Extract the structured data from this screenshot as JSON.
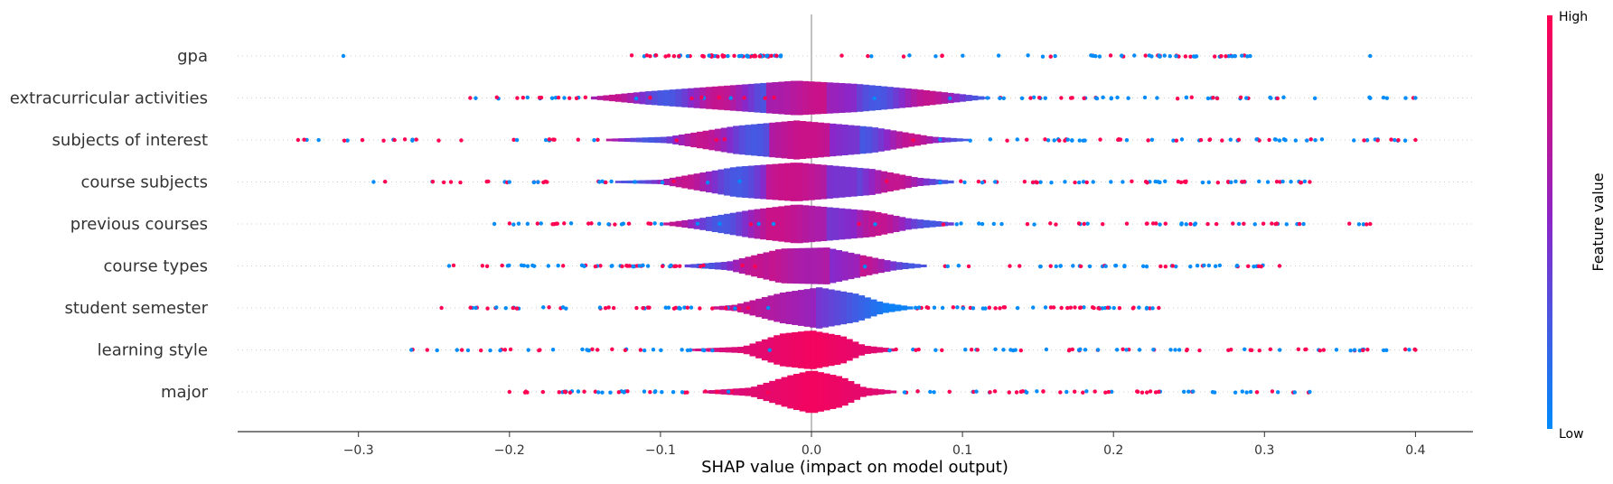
{
  "chart_data": {
    "type": "violin",
    "xlabel": "SHAP value (impact on model output)",
    "xlim": [
      -0.38,
      0.44
    ],
    "xticks": [
      -0.3,
      -0.2,
      -0.1,
      0.0,
      0.1,
      0.2,
      0.3,
      0.4
    ],
    "xtick_labels": [
      "−0.3",
      "−0.2",
      "−0.1",
      "0.0",
      "0.1",
      "0.2",
      "0.3",
      "0.4"
    ],
    "colorbar": {
      "title": "Feature value",
      "high_label": "High",
      "low_label": "Low",
      "high_color": "#ff0052",
      "low_color": "#008bfb"
    },
    "features": [
      {
        "name": "gpa",
        "min": -0.31,
        "max": 0.37,
        "violin_halfwidth": [
          [
            -0.12,
            0.003
          ],
          [
            0.0,
            0.004
          ],
          [
            0.2,
            0.003
          ],
          [
            0.3,
            0.001
          ]
        ],
        "color_profile": "mixed"
      },
      {
        "name": "extracurricular activities",
        "min": -0.226,
        "max": 0.4,
        "violin_halfwidth": [
          [
            -0.226,
            0.002
          ],
          [
            -0.15,
            0.006
          ],
          [
            -0.11,
            0.06
          ],
          [
            -0.07,
            0.1
          ],
          [
            -0.01,
            0.16
          ],
          [
            0.03,
            0.13
          ],
          [
            0.07,
            0.08
          ],
          [
            0.09,
            0.05
          ],
          [
            0.12,
            0.004
          ],
          [
            0.4,
            0.002
          ]
        ],
        "color_profile": "mixed"
      },
      {
        "name": "subjects of interest",
        "min": -0.34,
        "max": 0.4,
        "violin_halfwidth": [
          [
            -0.34,
            0.002
          ],
          [
            -0.15,
            0.004
          ],
          [
            -0.095,
            0.03
          ],
          [
            -0.05,
            0.13
          ],
          [
            -0.01,
            0.18
          ],
          [
            0.04,
            0.12
          ],
          [
            0.08,
            0.03
          ],
          [
            0.11,
            0.004
          ],
          [
            0.4,
            0.002
          ]
        ],
        "color_profile": "mixed"
      },
      {
        "name": "course subjects",
        "min": -0.29,
        "max": 0.33,
        "violin_halfwidth": [
          [
            -0.29,
            0.002
          ],
          [
            -0.15,
            0.004
          ],
          [
            -0.1,
            0.02
          ],
          [
            -0.05,
            0.14
          ],
          [
            -0.01,
            0.18
          ],
          [
            0.04,
            0.12
          ],
          [
            0.07,
            0.04
          ],
          [
            0.1,
            0.004
          ],
          [
            0.33,
            0.002
          ]
        ],
        "color_profile": "mixed"
      },
      {
        "name": "previous courses",
        "min": -0.21,
        "max": 0.37,
        "violin_halfwidth": [
          [
            -0.21,
            0.002
          ],
          [
            -0.1,
            0.006
          ],
          [
            -0.075,
            0.05
          ],
          [
            -0.04,
            0.13
          ],
          [
            -0.01,
            0.18
          ],
          [
            0.04,
            0.12
          ],
          [
            0.065,
            0.05
          ],
          [
            0.1,
            0.004
          ],
          [
            0.37,
            0.002
          ]
        ],
        "color_profile": "mixed"
      },
      {
        "name": "course types",
        "min": -0.24,
        "max": 0.31,
        "violin_halfwidth": [
          [
            -0.24,
            0.002
          ],
          [
            -0.09,
            0.006
          ],
          [
            -0.055,
            0.04
          ],
          [
            -0.02,
            0.16
          ],
          [
            0.01,
            0.17
          ],
          [
            0.04,
            0.08
          ],
          [
            0.055,
            0.04
          ],
          [
            0.08,
            0.004
          ],
          [
            0.31,
            0.002
          ]
        ],
        "color_profile": "mixed"
      },
      {
        "name": "student semester",
        "min": -0.245,
        "max": 0.23,
        "violin_halfwidth": [
          [
            -0.245,
            0.002
          ],
          [
            -0.07,
            0.006
          ],
          [
            -0.05,
            0.03
          ],
          [
            -0.02,
            0.14
          ],
          [
            0.005,
            0.19
          ],
          [
            0.03,
            0.13
          ],
          [
            0.047,
            0.05
          ],
          [
            0.07,
            0.004
          ],
          [
            0.23,
            0.002
          ]
        ],
        "color_profile": "low_right"
      },
      {
        "name": "learning style",
        "min": -0.265,
        "max": 0.4,
        "violin_halfwidth": [
          [
            -0.265,
            0.002
          ],
          [
            -0.09,
            0.004
          ],
          [
            -0.045,
            0.03
          ],
          [
            -0.02,
            0.15
          ],
          [
            0.0,
            0.18
          ],
          [
            0.02,
            0.13
          ],
          [
            0.035,
            0.04
          ],
          [
            0.06,
            0.004
          ],
          [
            0.4,
            0.002
          ]
        ],
        "color_profile": "high_center"
      },
      {
        "name": "major",
        "min": -0.2,
        "max": 0.33,
        "violin_halfwidth": [
          [
            -0.2,
            0.002
          ],
          [
            -0.08,
            0.004
          ],
          [
            -0.04,
            0.04
          ],
          [
            -0.015,
            0.15
          ],
          [
            0.0,
            0.2
          ],
          [
            0.02,
            0.14
          ],
          [
            0.035,
            0.04
          ],
          [
            0.06,
            0.004
          ],
          [
            0.33,
            0.002
          ]
        ],
        "color_profile": "high_center"
      }
    ]
  }
}
